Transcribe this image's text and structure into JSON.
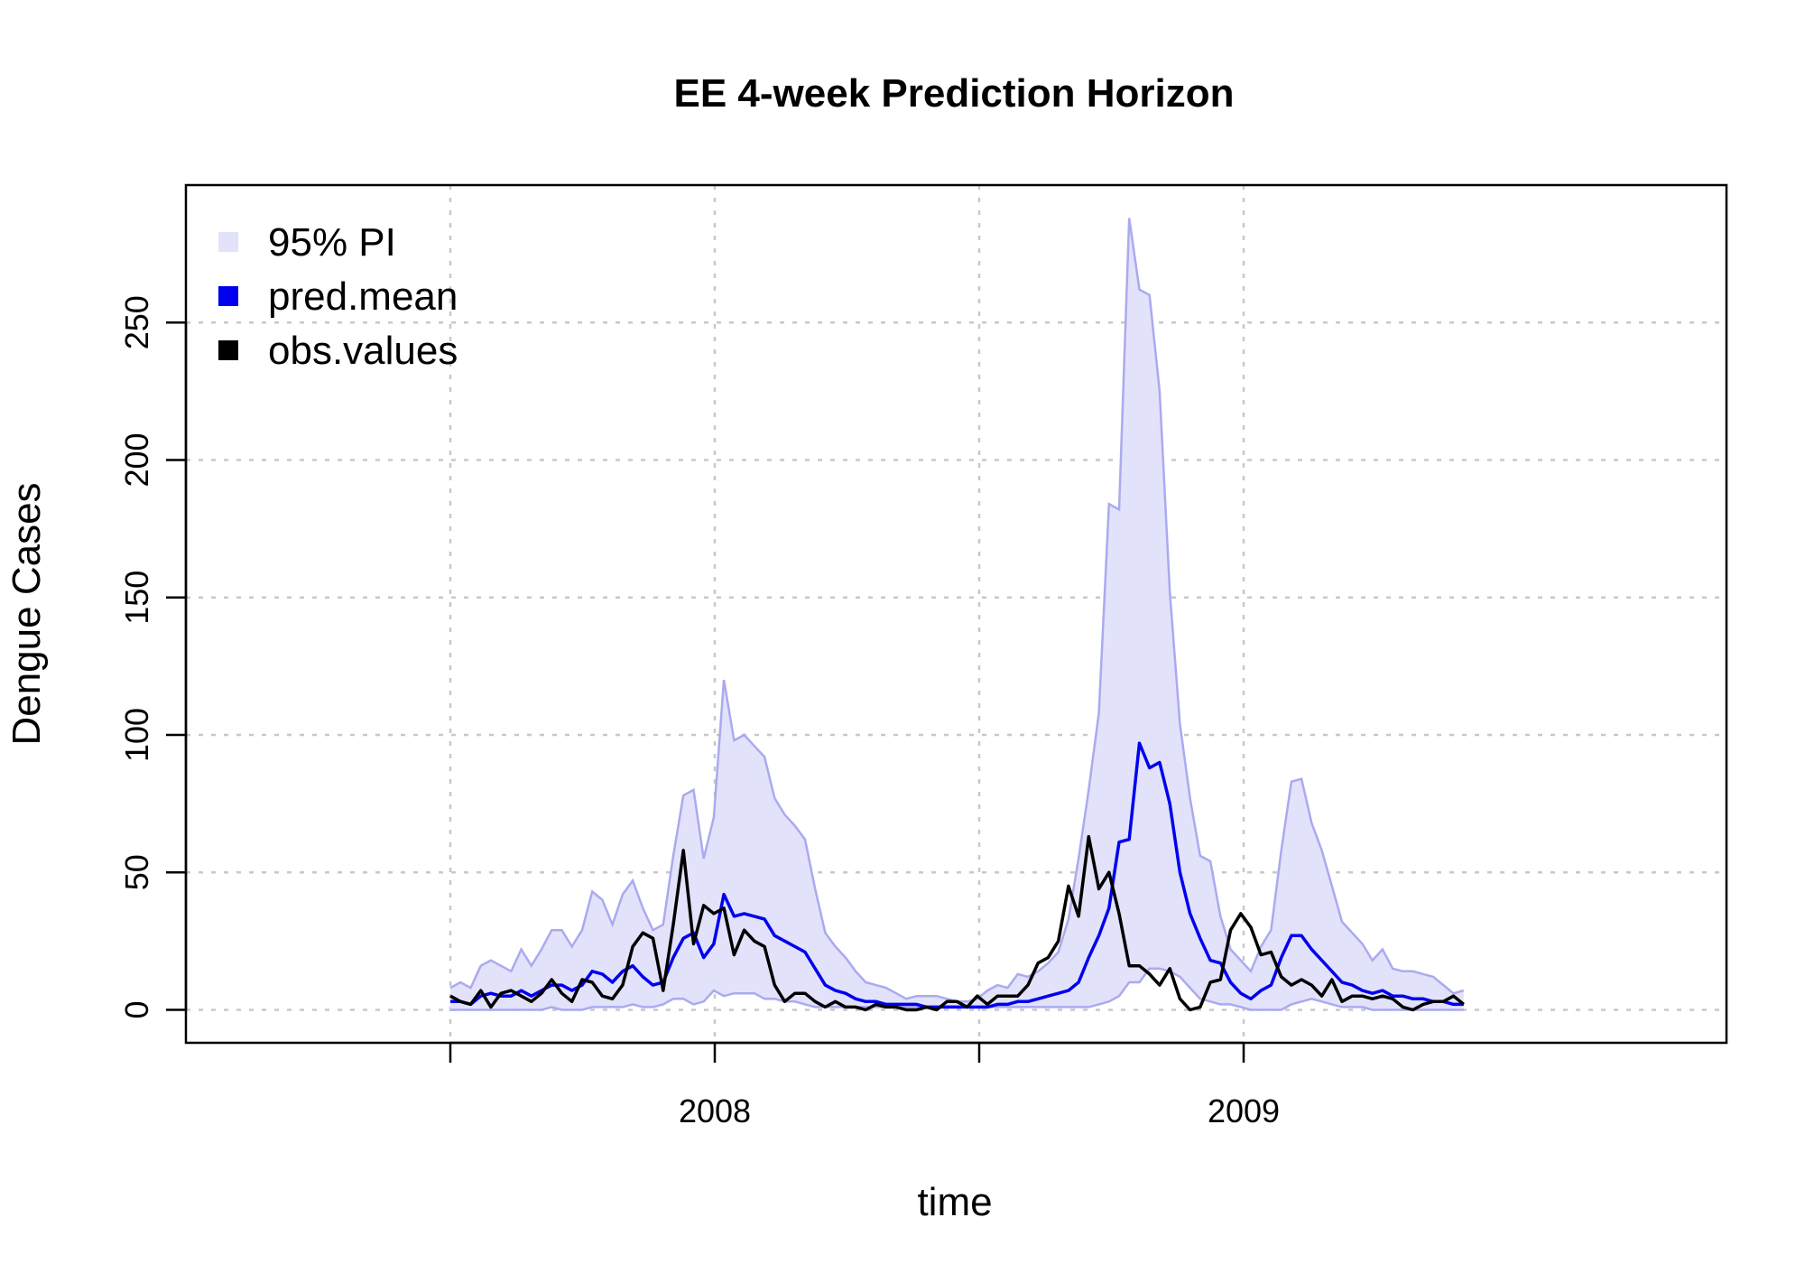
{
  "chart_data": {
    "type": "line",
    "title": "EE 4-week Prediction Horizon",
    "xlabel": "time",
    "ylabel": "Dengue Cases",
    "xlim": [
      2007.0,
      2009.913
    ],
    "ylim": [
      -12,
      300
    ],
    "x_ticks": [
      {
        "value": 2007.5,
        "label": ""
      },
      {
        "value": 2008.0,
        "label": "2008"
      },
      {
        "value": 2008.5,
        "label": ""
      },
      {
        "value": 2009.0,
        "label": "2009"
      }
    ],
    "y_ticks": [
      0,
      50,
      100,
      150,
      200,
      250
    ],
    "grid": true,
    "legend_position": "top-left",
    "legend": [
      {
        "label": "95% PI",
        "color": "#e2e2fb"
      },
      {
        "label": "pred.mean",
        "color": "#0000ee"
      },
      {
        "label": "obs.values",
        "color": "#000000"
      }
    ],
    "colors": {
      "pi_fill": "#e2e2fb",
      "pi_edge": "#aaaaef",
      "pred_mean": "#0000ee",
      "obs_values": "#000000"
    },
    "x_start": 2007.5,
    "x_step": 0.01916,
    "series": [
      {
        "name": "95% PI",
        "kind": "band",
        "lower": [
          0,
          0,
          0,
          0,
          0,
          0,
          0,
          0,
          0,
          0,
          1,
          0,
          0,
          0,
          1,
          1,
          1,
          1,
          2,
          1,
          1,
          2,
          4,
          4,
          2,
          3,
          7,
          5,
          6,
          6,
          6,
          4,
          4,
          3,
          3,
          2,
          1,
          1,
          1,
          1,
          1,
          1,
          1,
          1,
          1,
          1,
          1,
          1,
          1,
          1,
          1,
          1,
          1,
          1,
          1,
          1,
          1,
          1,
          1,
          1,
          1,
          1,
          1,
          1,
          2,
          3,
          5,
          10,
          10,
          15,
          15,
          14,
          12,
          8,
          4,
          3,
          2,
          2,
          1,
          0,
          0,
          0,
          0,
          2,
          3,
          4,
          3,
          2,
          1,
          1,
          1,
          0,
          0,
          0,
          0,
          0,
          0,
          0,
          0,
          0,
          0
        ],
        "upper": [
          8,
          10,
          8,
          16,
          18,
          16,
          14,
          22,
          16,
          22,
          29,
          29,
          23,
          29,
          43,
          40,
          31,
          42,
          47,
          37,
          29,
          31,
          56,
          78,
          80,
          55,
          70,
          120,
          98,
          100,
          96,
          92,
          77,
          71,
          67,
          62,
          44,
          28,
          23,
          19,
          14,
          10,
          9,
          8,
          6,
          4,
          5,
          5,
          5,
          4,
          3,
          3,
          4,
          7,
          9,
          8,
          13,
          12,
          14,
          17,
          21,
          33,
          55,
          80,
          108,
          184,
          182,
          288,
          262,
          260,
          225,
          152,
          104,
          77,
          56,
          54,
          34,
          22,
          18,
          14,
          23,
          29,
          58,
          83,
          84,
          68,
          58,
          45,
          32,
          28,
          24,
          18,
          22,
          15,
          14,
          14,
          13,
          12,
          9,
          6,
          7
        ]
      },
      {
        "name": "pred.mean",
        "kind": "line",
        "values": [
          3,
          3,
          2,
          5,
          6,
          5,
          5,
          7,
          5,
          7,
          9,
          9,
          7,
          9,
          14,
          13,
          10,
          14,
          16,
          12,
          9,
          10,
          19,
          26,
          28,
          19,
          24,
          42,
          34,
          35,
          34,
          33,
          27,
          25,
          23,
          21,
          15,
          9,
          7,
          6,
          4,
          3,
          3,
          2,
          2,
          2,
          2,
          1,
          1,
          1,
          1,
          1,
          1,
          1,
          2,
          2,
          3,
          3,
          4,
          5,
          6,
          7,
          10,
          19,
          27,
          37,
          61,
          62,
          97,
          88,
          90,
          75,
          50,
          35,
          26,
          18,
          17,
          10,
          6,
          4,
          7,
          9,
          19,
          27,
          27,
          22,
          18,
          14,
          10,
          9,
          7,
          6,
          7,
          5,
          5,
          4,
          4,
          3,
          3,
          2,
          2
        ]
      },
      {
        "name": "obs.values",
        "kind": "line",
        "values": [
          5,
          3,
          2,
          7,
          1,
          6,
          7,
          5,
          3,
          6,
          11,
          6,
          3,
          11,
          10,
          5,
          4,
          9,
          23,
          28,
          26,
          7,
          31,
          58,
          24,
          38,
          35,
          37,
          20,
          29,
          25,
          23,
          9,
          3,
          6,
          6,
          3,
          1,
          3,
          1,
          1,
          0,
          2,
          1,
          1,
          0,
          0,
          1,
          0,
          3,
          3,
          1,
          5,
          2,
          5,
          5,
          5,
          9,
          17,
          19,
          25,
          45,
          34,
          63,
          44,
          50,
          35,
          16,
          16,
          13,
          9,
          15,
          4,
          0,
          1,
          10,
          11,
          29,
          35,
          30,
          20,
          21,
          12,
          9,
          11,
          9,
          5,
          11,
          3,
          5,
          5,
          4,
          5,
          4,
          1,
          0,
          2,
          3,
          3,
          5,
          2
        ]
      }
    ]
  }
}
